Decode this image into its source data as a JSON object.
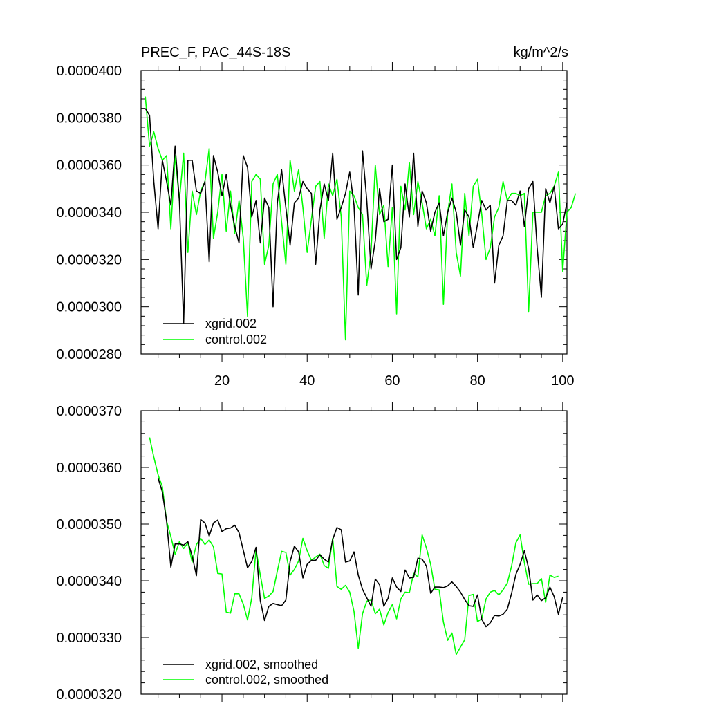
{
  "chart_data": [
    {
      "type": "line",
      "title": "PREC_F, PAC_44S-18S",
      "units": "kg/m^2/s",
      "xlim": [
        1,
        101
      ],
      "ylim": [
        2.8e-05,
        4e-05
      ],
      "x_ticks": [
        20,
        40,
        60,
        80,
        100
      ],
      "y_ticks": [
        2.8e-05,
        3e-05,
        3.2e-05,
        3.4e-05,
        3.6e-05,
        3.8e-05,
        4e-05
      ],
      "y_tick_labels": [
        "0.0000280",
        "0.0000300",
        "0.0000320",
        "0.0000340",
        "0.0000360",
        "0.0000380",
        "0.0000400"
      ],
      "legend_position": "bottom-left",
      "series": [
        {
          "name": "xgrid.002",
          "color": "#000000",
          "x_start": 2,
          "values": [
            3.84e-05,
            3.81e-05,
            3.53e-05,
            3.33e-05,
            3.62e-05,
            3.53e-05,
            3.43e-05,
            3.68e-05,
            3.45e-05,
            2.93e-05,
            3.62e-05,
            3.62e-05,
            3.49e-05,
            3.48e-05,
            3.53e-05,
            3.19e-05,
            3.64e-05,
            3.57e-05,
            3.47e-05,
            3.56e-05,
            3.43e-05,
            3.34e-05,
            3.27e-05,
            3.64e-05,
            3.59e-05,
            3.38e-05,
            3.45e-05,
            3.27e-05,
            3.46e-05,
            3.42e-05,
            3e-05,
            3.44e-05,
            3.58e-05,
            3.42e-05,
            3.26e-05,
            3.44e-05,
            3.46e-05,
            3.53e-05,
            3.5e-05,
            3.48e-05,
            3.18e-05,
            3.41e-05,
            3.52e-05,
            3.45e-05,
            3.65e-05,
            3.37e-05,
            3.42e-05,
            3.48e-05,
            3.57e-05,
            3.43e-05,
            3.05e-05,
            3.66e-05,
            3.45e-05,
            3.16e-05,
            3.28e-05,
            3.5e-05,
            3.36e-05,
            3.37e-05,
            3.6e-05,
            3.2e-05,
            3.25e-05,
            3.52e-05,
            3.38e-05,
            3.65e-05,
            3.34e-05,
            3.49e-05,
            3.44e-05,
            3.32e-05,
            3.4e-05,
            3.44e-05,
            3.3e-05,
            3.4e-05,
            3.46e-05,
            3.4e-05,
            3.26e-05,
            3.41e-05,
            3.38e-05,
            3.25e-05,
            3.35e-05,
            3.45e-05,
            3.41e-05,
            3.43e-05,
            3.1e-05,
            3.26e-05,
            3.3e-05,
            3.45e-05,
            3.45e-05,
            3.43e-05,
            3.49e-05,
            3.34e-05,
            3.5e-05,
            3.53e-05,
            3.25e-05,
            3.04e-05,
            3.5e-05,
            3.44e-05,
            3.51e-05,
            3.33e-05,
            3.35e-05,
            3.44e-05
          ]
        },
        {
          "name": "control.002",
          "color": "#00ff00",
          "x_start": 2,
          "values": [
            3.89e-05,
            3.68e-05,
            3.74e-05,
            3.67e-05,
            3.62e-05,
            3.64e-05,
            3.33e-05,
            3.64e-05,
            3.45e-05,
            3.65e-05,
            3.23e-05,
            3.49e-05,
            3.39e-05,
            3.49e-05,
            3.53e-05,
            3.67e-05,
            3.29e-05,
            3.4e-05,
            3.56e-05,
            3.32e-05,
            3.49e-05,
            3.31e-05,
            3.45e-05,
            3.29e-05,
            2.96e-05,
            3.53e-05,
            3.56e-05,
            3.54e-05,
            3.18e-05,
            3.26e-05,
            3.52e-05,
            3.56e-05,
            3.36e-05,
            3.18e-05,
            3.62e-05,
            3.49e-05,
            3.58e-05,
            3.42e-05,
            3.23e-05,
            3.37e-05,
            3.51e-05,
            3.53e-05,
            3.29e-05,
            3.52e-05,
            3.47e-05,
            3.54e-05,
            3.38e-05,
            2.86e-05,
            3.49e-05,
            3.47e-05,
            3.42e-05,
            3.39e-05,
            3.09e-05,
            3.23e-05,
            3.6e-05,
            3.39e-05,
            3.43e-05,
            3.17e-05,
            3.42e-05,
            2.97e-05,
            3.51e-05,
            3.41e-05,
            3.61e-05,
            3.39e-05,
            3.53e-05,
            3.44e-05,
            3.33e-05,
            3.37e-05,
            3.3e-05,
            3.47e-05,
            3.01e-05,
            3.4e-05,
            3.52e-05,
            3.23e-05,
            3.13e-05,
            3.48e-05,
            3.3e-05,
            3.51e-05,
            3.54e-05,
            3.39e-05,
            3.2e-05,
            3.25e-05,
            3.38e-05,
            3.42e-05,
            3.53e-05,
            3.45e-05,
            3.48e-05,
            3.48e-05,
            3.47e-05,
            3.48e-05,
            2.98e-05,
            3.4e-05,
            3.4e-05,
            3.4e-05,
            3.47e-05,
            3.48e-05,
            3.51e-05,
            3.57e-05,
            3.15e-05,
            3.4e-05,
            3.42e-05,
            3.48e-05
          ]
        }
      ]
    },
    {
      "type": "line",
      "xlim": [
        1,
        101
      ],
      "ylim": [
        3.2e-05,
        3.7e-05
      ],
      "x_ticks": [
        20,
        40,
        60,
        80,
        100
      ],
      "y_ticks": [
        3.2e-05,
        3.3e-05,
        3.4e-05,
        3.5e-05,
        3.6e-05,
        3.7e-05
      ],
      "y_tick_labels": [
        "0.0000320",
        "0.0000330",
        "0.0000340",
        "0.0000350",
        "0.0000360",
        "0.0000370"
      ],
      "legend_position": "bottom-left",
      "series": [
        {
          "name": "xgrid.002, smoothed",
          "color": "#000000",
          "x_start": 5,
          "values": [
            3.581e-05,
            3.557e-05,
            3.505e-05,
            3.424e-05,
            3.465e-05,
            3.465e-05,
            3.463e-05,
            3.469e-05,
            3.444e-05,
            3.409e-05,
            3.508e-05,
            3.502e-05,
            3.479e-05,
            3.502e-05,
            3.507e-05,
            3.487e-05,
            3.492e-05,
            3.493e-05,
            3.498e-05,
            3.485e-05,
            3.454e-05,
            3.423e-05,
            3.434e-05,
            3.459e-05,
            3.365e-05,
            3.33e-05,
            3.355e-05,
            3.36e-05,
            3.358e-05,
            3.356e-05,
            3.366e-05,
            3.434e-05,
            3.461e-05,
            3.451e-05,
            3.405e-05,
            3.429e-05,
            3.436e-05,
            3.436e-05,
            3.446e-05,
            3.438e-05,
            3.433e-05,
            3.473e-05,
            3.494e-05,
            3.49e-05,
            3.433e-05,
            3.435e-05,
            3.451e-05,
            3.41e-05,
            3.385e-05,
            3.37e-05,
            3.355e-05,
            3.403e-05,
            3.393e-05,
            3.355e-05,
            3.369e-05,
            3.405e-05,
            3.389e-05,
            3.381e-05,
            3.419e-05,
            3.405e-05,
            3.406e-05,
            3.44e-05,
            3.438e-05,
            3.426e-05,
            3.378e-05,
            3.389e-05,
            3.389e-05,
            3.388e-05,
            3.391e-05,
            3.398e-05,
            3.39e-05,
            3.38e-05,
            3.367e-05,
            3.356e-05,
            3.355e-05,
            3.375e-05,
            3.332e-05,
            3.319e-05,
            3.326e-05,
            3.339e-05,
            3.338e-05,
            3.341e-05,
            3.35e-05,
            3.378e-05,
            3.411e-05,
            3.429e-05,
            3.453e-05,
            3.422e-05,
            3.366e-05,
            3.375e-05,
            3.365e-05,
            3.37e-05,
            3.389e-05,
            3.372e-05,
            3.341e-05,
            3.371e-05
          ]
        },
        {
          "name": "control.002, smoothed",
          "color": "#00ff00",
          "x_start": 3,
          "values": [
            3.653e-05,
            3.618e-05,
            3.587e-05,
            3.566e-05,
            3.505e-05,
            3.478e-05,
            3.447e-05,
            3.469e-05,
            3.457e-05,
            3.467e-05,
            3.433e-05,
            3.464e-05,
            3.475e-05,
            3.464e-05,
            3.472e-05,
            3.46e-05,
            3.413e-05,
            3.412e-05,
            3.345e-05,
            3.343e-05,
            3.377e-05,
            3.377e-05,
            3.359e-05,
            3.331e-05,
            3.37e-05,
            3.455e-05,
            3.41e-05,
            3.369e-05,
            3.373e-05,
            3.381e-05,
            3.417e-05,
            3.452e-05,
            3.45e-05,
            3.41e-05,
            3.42e-05,
            3.435e-05,
            3.475e-05,
            3.453e-05,
            3.436e-05,
            3.442e-05,
            3.447e-05,
            3.427e-05,
            3.422e-05,
            3.475e-05,
            3.39e-05,
            3.385e-05,
            3.392e-05,
            3.38e-05,
            3.346e-05,
            3.281e-05,
            3.342e-05,
            3.364e-05,
            3.366e-05,
            3.342e-05,
            3.35e-05,
            3.322e-05,
            3.344e-05,
            3.358e-05,
            3.333e-05,
            3.368e-05,
            3.38e-05,
            3.379e-05,
            3.413e-05,
            3.407e-05,
            3.481e-05,
            3.458e-05,
            3.429e-05,
            3.385e-05,
            3.384e-05,
            3.327e-05,
            3.295e-05,
            3.308e-05,
            3.27e-05,
            3.283e-05,
            3.296e-05,
            3.374e-05,
            3.376e-05,
            3.328e-05,
            3.333e-05,
            3.368e-05,
            3.38e-05,
            3.383e-05,
            3.375e-05,
            3.384e-05,
            3.396e-05,
            3.426e-05,
            3.467e-05,
            3.481e-05,
            3.432e-05,
            3.394e-05,
            3.395e-05,
            3.395e-05,
            3.404e-05,
            3.362e-05,
            3.41e-05,
            3.406e-05,
            3.408e-05
          ]
        }
      ]
    }
  ]
}
